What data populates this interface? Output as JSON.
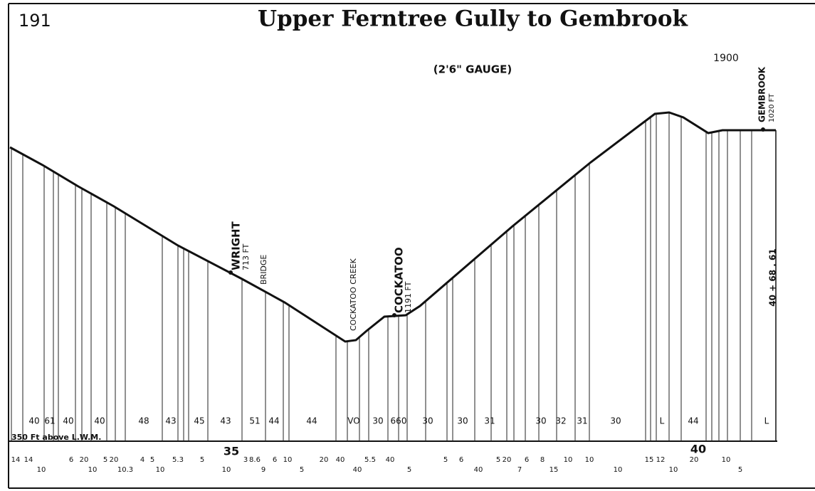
{
  "page_number": "191",
  "title": "Upper Ferntree Gully to Gembrook",
  "gauge": "(2'6\" GAUGE)",
  "year": "1900",
  "stations": [
    {
      "name": "WRIGHT",
      "height": "713 FT"
    },
    {
      "name": "COCKATOO",
      "height": "1191 FT"
    },
    {
      "name": "GEMBROOK",
      "height": "1020 FT"
    }
  ],
  "features": [
    "BRIDGE",
    "COCKATOO CREEK"
  ],
  "datum": "350 Ft above L.W.M.",
  "distance": "40 + 68 . 61",
  "mileposts": [
    "35",
    "40"
  ],
  "gradients": [
    "40",
    "61",
    "40",
    "40",
    "48",
    "43",
    "45",
    "43",
    "51",
    "44",
    "44",
    "VO",
    "30",
    "660",
    "30",
    "30",
    "31",
    "30",
    "32",
    "31",
    "30",
    "L",
    "44",
    "L"
  ],
  "curves": [
    "14",
    "14",
    "10",
    "6",
    "20",
    "10",
    "5",
    "20",
    "10.3",
    "4",
    "5",
    "10",
    "5.3",
    "5",
    "10",
    "3",
    "8.6",
    "9",
    "6",
    "10",
    "5",
    "20",
    "40",
    "40",
    "5.5",
    "40",
    "5",
    "5",
    "6",
    "40",
    "5",
    "20",
    "7",
    "6",
    "8",
    "15",
    "10",
    "10",
    "10",
    "15",
    "12",
    "10",
    "20",
    "10",
    "5"
  ]
}
